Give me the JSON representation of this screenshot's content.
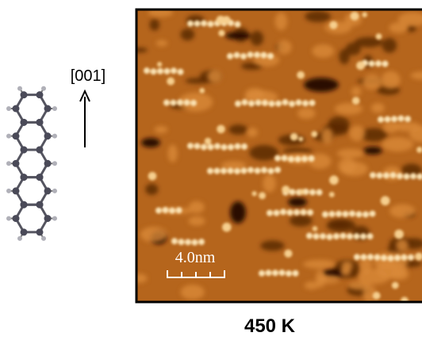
{
  "labels": {
    "direction": "[001]",
    "scale_bar": "4.0nm",
    "temperature": "450 K"
  }
}
